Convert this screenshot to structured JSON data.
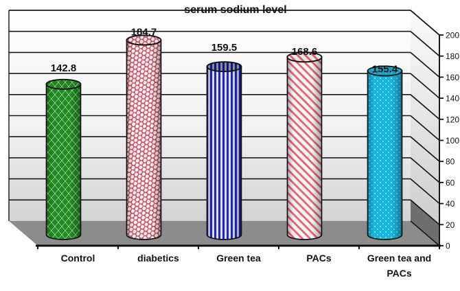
{
  "chart_data": {
    "type": "bar",
    "style": "3d-cylinder",
    "title": "serum sodium level",
    "categories": [
      "Control",
      "diabetics",
      "Green tea",
      "PACs",
      "Green tea and PACs"
    ],
    "categories_lines": [
      [
        "Control"
      ],
      [
        "diabetics"
      ],
      [
        "Green tea"
      ],
      [
        "PACs"
      ],
      [
        "Green tea and",
        "PACs"
      ]
    ],
    "values": [
      142.8,
      184.7,
      159.5,
      168.6,
      155.4
    ],
    "value_labels": [
      "142.8",
      "184.7",
      "159.5",
      "168.6",
      "155.4"
    ],
    "xlabel": "",
    "ylabel": "",
    "ylim": [
      0,
      200
    ],
    "yticks": [
      0,
      20,
      40,
      60,
      80,
      100,
      120,
      140,
      160,
      180,
      200
    ],
    "axis_side": "right",
    "grid": true,
    "legend": "none",
    "bar_patterns": [
      "green-diamond",
      "red-weave",
      "blue-vertical-stripes",
      "pink-diagonal-stripes",
      "cyan-dots"
    ],
    "bar_colors": [
      "#1e8c1e",
      "#cb4a62",
      "#2428b4",
      "#e8808e",
      "#17b5da"
    ]
  }
}
